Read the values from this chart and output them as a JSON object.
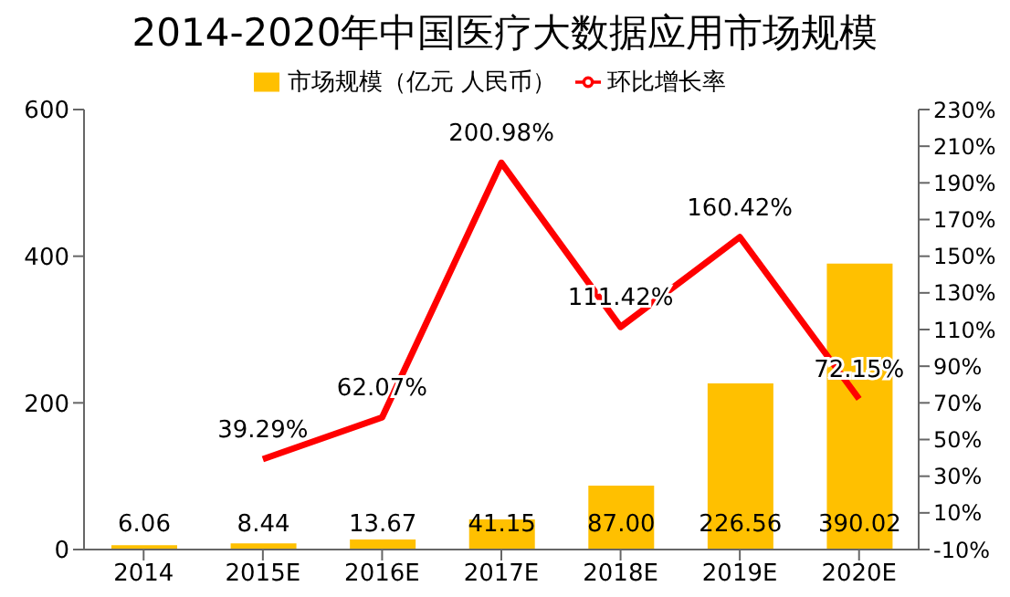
{
  "chart_data": {
    "type": "bar",
    "title": "2014-2020年中国医疗大数据应用市场规模",
    "categories": [
      "2014",
      "2015E",
      "2016E",
      "2017E",
      "2018E",
      "2019E",
      "2020E"
    ],
    "series": [
      {
        "name": "市场规模（亿元 人民币）",
        "color": "#ffc000",
        "values": [
          6.06,
          8.44,
          13.67,
          41.15,
          87.0,
          226.56,
          390.02
        ],
        "value_labels": [
          "6.06",
          "8.44",
          "13.67",
          "41.15",
          "87.00",
          "226.56",
          "390.02"
        ]
      },
      {
        "name": "环比增长率",
        "type": "line",
        "axis": "y2",
        "color": "#ff0000",
        "values": [
          null,
          39.29,
          62.07,
          200.98,
          111.42,
          160.42,
          72.15
        ],
        "value_labels": [
          null,
          "39.29%",
          "62.07%",
          "200.98%",
          "111.42%",
          "160.42%",
          "72.15%"
        ]
      }
    ],
    "ylim": [
      0,
      600
    ],
    "yticks": [
      0,
      200,
      400,
      600
    ],
    "y2lim": [
      -10,
      230
    ],
    "y2ticks": [
      {
        "value": -10,
        "label": "-10%"
      },
      {
        "value": 10,
        "label": "10%"
      },
      {
        "value": 30,
        "label": "30%"
      },
      {
        "value": 50,
        "label": "50%"
      },
      {
        "value": 70,
        "label": "70%"
      },
      {
        "value": 90,
        "label": "90%"
      },
      {
        "value": 110,
        "label": "110%"
      },
      {
        "value": 130,
        "label": "130%"
      },
      {
        "value": 150,
        "label": "150%"
      },
      {
        "value": 170,
        "label": "170%"
      },
      {
        "value": 190,
        "label": "190%"
      },
      {
        "value": 210,
        "label": "210%"
      },
      {
        "value": 230,
        "label": "230%"
      }
    ],
    "legend": "top",
    "grid": false,
    "marker": "none"
  }
}
